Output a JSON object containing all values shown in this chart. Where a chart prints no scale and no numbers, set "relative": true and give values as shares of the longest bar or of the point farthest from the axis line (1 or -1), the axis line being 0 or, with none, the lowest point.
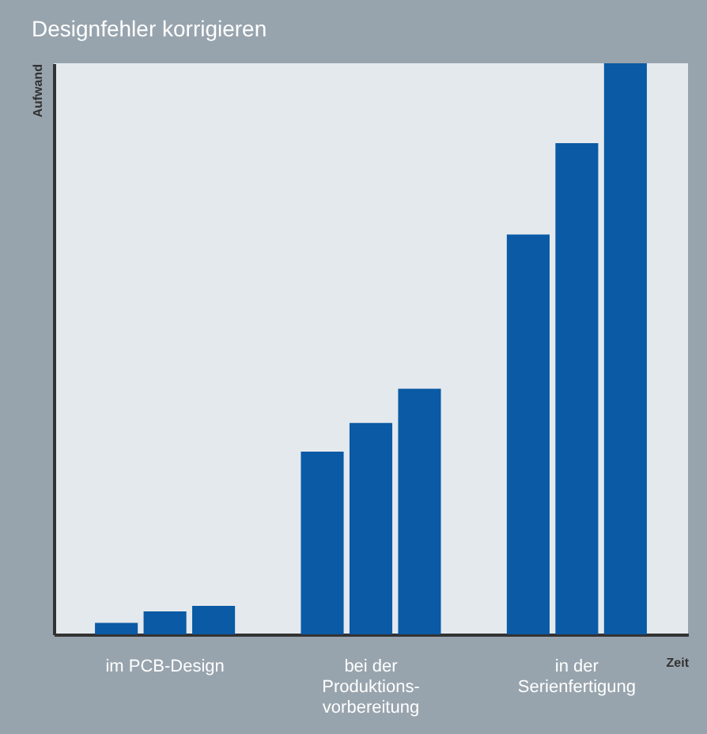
{
  "chart_data": {
    "type": "bar",
    "title": "Designfehler korrigieren",
    "xlabel": "Zeit",
    "ylabel": "Aufwand",
    "categories": [
      "im PCB-Design",
      "bei der\nProduktions-\nvorbereitung",
      "in der\nSerienfertigung"
    ],
    "relative": true,
    "grid": false,
    "series": [
      {
        "color": "#0a5aa5",
        "values": [
          0.02,
          0.32,
          0.7
        ]
      },
      {
        "color": "#0a5aa5",
        "values": [
          0.04,
          0.37,
          0.86
        ]
      },
      {
        "color": "#0a5aa5",
        "values": [
          0.05,
          0.43,
          1.0
        ]
      }
    ]
  }
}
